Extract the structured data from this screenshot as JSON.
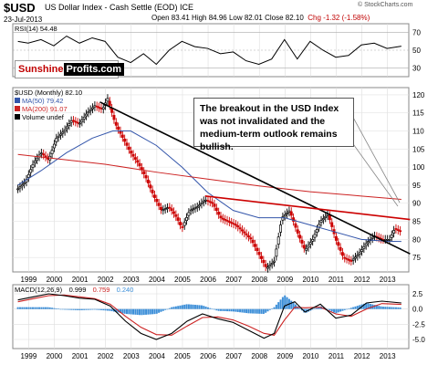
{
  "header": {
    "symbol": "$USD",
    "name": "US Dollar Index - Cash Settle (EOD) ICE",
    "date": "23-Jul-2013",
    "quote_main": "Open 83.41  High 84.96  Low 82.01  Close 82.10",
    "quote_chg": "Chg -1.32 (-1.58%)",
    "copyright": "© StockCharts.com"
  },
  "logo": {
    "part1": "Sunshine",
    "part2": "Profits.com"
  },
  "annotation": "The breakout in the USD Index was not invalidated and the medium-term outlook remains bullish.",
  "colors": {
    "bull": "#000000",
    "bear": "#cc0000",
    "ma50": "#3355aa",
    "ma200": "#cc2222",
    "trend_red": "#cc0000",
    "trend_black": "#000000",
    "macd_hist": "#3d8fd8",
    "macd_line": "#000000",
    "signal_line": "#cc2222",
    "rsi_line": "#000000"
  },
  "chart_data": [
    {
      "type": "line",
      "title": "RSI(14) 54.48",
      "legend": "RSI(14) 54.48",
      "yticks": [
        70,
        50,
        30
      ],
      "ylim": [
        20,
        80
      ],
      "x": [
        1998.6,
        1999.0,
        1999.5,
        2000.0,
        2000.5,
        2001.0,
        2001.5,
        2002.0,
        2002.5,
        2003.0,
        2003.5,
        2004.0,
        2004.5,
        2005.0,
        2005.5,
        2006.0,
        2006.5,
        2007.0,
        2007.5,
        2008.0,
        2008.5,
        2009.0,
        2009.5,
        2010.0,
        2010.5,
        2011.0,
        2011.5,
        2012.0,
        2012.5,
        2013.0,
        2013.56
      ],
      "values": [
        60,
        58,
        62,
        55,
        66,
        58,
        64,
        60,
        42,
        36,
        46,
        34,
        50,
        60,
        54,
        52,
        46,
        48,
        38,
        34,
        40,
        62,
        40,
        60,
        50,
        42,
        44,
        56,
        58,
        52,
        54.48
      ]
    },
    {
      "type": "line",
      "title": "$USD (Monthly) 82.10",
      "legend": [
        "$USD (Monthly) 82.10",
        "MA(50) 79.42",
        "MA(200) 91.07",
        "Volume undef"
      ],
      "xticks": [
        "1999",
        "2000",
        "2001",
        "2002",
        "2003",
        "2004",
        "2005",
        "2006",
        "2007",
        "2008",
        "2009",
        "2010",
        "2011",
        "2012",
        "2013"
      ],
      "yticks": [
        120,
        115,
        110,
        105,
        100,
        95,
        90,
        85,
        80,
        75
      ],
      "ylim": [
        71,
        122
      ],
      "series": [
        {
          "name": "$USD (Monthly) 82.10",
          "x": [
            1998.6,
            1998.9,
            1999.2,
            1999.5,
            1999.8,
            2000.1,
            2000.4,
            2000.7,
            2001.0,
            2001.3,
            2001.6,
            2001.9,
            2002.1,
            2002.4,
            2002.7,
            2003.0,
            2003.3,
            2003.6,
            2003.9,
            2004.2,
            2004.5,
            2004.8,
            2005.0,
            2005.3,
            2005.6,
            2005.9,
            2006.2,
            2006.5,
            2006.8,
            2007.1,
            2007.4,
            2007.7,
            2008.0,
            2008.3,
            2008.6,
            2008.9,
            2009.2,
            2009.5,
            2009.8,
            2010.1,
            2010.4,
            2010.7,
            2011.0,
            2011.3,
            2011.6,
            2011.9,
            2012.2,
            2012.5,
            2012.8,
            2013.1,
            2013.3,
            2013.56
          ],
          "values": [
            94,
            96,
            101,
            104,
            102,
            108,
            110,
            113,
            112,
            115,
            117,
            116,
            119,
            112,
            108,
            104,
            101,
            97,
            92,
            88,
            89,
            86,
            83,
            88,
            89,
            91,
            90,
            86,
            85,
            84,
            82,
            80,
            76,
            72,
            74,
            86,
            88,
            82,
            77,
            80,
            85,
            87,
            80,
            75,
            74,
            76,
            79,
            81,
            80,
            80,
            83,
            82.1
          ]
        },
        {
          "name": "MA(50) 79.42",
          "x": [
            1998.6,
            1999.5,
            2000.5,
            2001.5,
            2002.3,
            2003.0,
            2004.0,
            2005.0,
            2006.0,
            2007.0,
            2008.0,
            2009.0,
            2010.0,
            2011.0,
            2012.0,
            2013.0,
            2013.56
          ],
          "values": [
            95,
            99,
            104,
            108,
            110,
            110,
            106,
            100,
            93,
            88,
            86,
            86,
            84,
            82,
            80,
            79.5,
            79.42
          ]
        },
        {
          "name": "MA(200) 91.07",
          "x": [
            1998.6,
            2000.0,
            2002.0,
            2004.0,
            2006.0,
            2008.0,
            2010.0,
            2012.0,
            2013.56
          ],
          "values": [
            103.5,
            102.4,
            100.8,
            98.6,
            96.7,
            94.8,
            93.2,
            92.0,
            91.07
          ]
        }
      ],
      "trendlines": [
        {
          "name": "black",
          "x": [
            2001.8,
            2013.9
          ],
          "values": [
            118,
            76
          ]
        },
        {
          "name": "red",
          "x": [
            2005.9,
            2013.9
          ],
          "values": [
            92,
            85.5
          ]
        }
      ]
    },
    {
      "type": "line",
      "title": "MACD(12,26,9) 0.999, 0.759, 0.240",
      "legend": [
        "MACD(12,26,9)",
        "0.999",
        "0.759",
        "0.240"
      ],
      "xticks": [
        "1999",
        "2000",
        "2001",
        "2002",
        "2003",
        "2004",
        "2005",
        "2006",
        "2007",
        "2008",
        "2009",
        "2010",
        "2011",
        "2012",
        "2013"
      ],
      "yticks": [
        "2.5",
        "0.0",
        "-2.5",
        "-5.0"
      ],
      "ylim": [
        -6.5,
        4
      ],
      "x": [
        1998.6,
        1999.2,
        1999.8,
        2000.4,
        2001.0,
        2001.6,
        2002.2,
        2002.8,
        2003.4,
        2004.0,
        2004.6,
        2005.2,
        2005.8,
        2006.4,
        2007.0,
        2007.6,
        2008.2,
        2008.6,
        2009.0,
        2009.4,
        2009.8,
        2010.4,
        2011.0,
        2011.6,
        2012.2,
        2012.8,
        2013.56
      ],
      "series": [
        {
          "name": "MACD",
          "values": [
            1.5,
            2.0,
            2.5,
            2.2,
            1.8,
            1.6,
            0.5,
            -2.0,
            -4.0,
            -5.0,
            -4.0,
            -2.0,
            -0.8,
            -1.6,
            -2.2,
            -3.5,
            -4.8,
            -4.0,
            0.5,
            1.2,
            -0.5,
            0.8,
            -1.5,
            -1.0,
            1.0,
            1.3,
            0.999
          ]
        },
        {
          "name": "Signal",
          "values": [
            1.2,
            1.7,
            2.2,
            2.3,
            2.0,
            1.7,
            0.8,
            -1.2,
            -3.0,
            -4.2,
            -4.3,
            -2.8,
            -1.4,
            -1.3,
            -1.8,
            -2.8,
            -4.0,
            -4.3,
            -1.8,
            0.3,
            0.2,
            0.3,
            -0.8,
            -1.2,
            0.0,
            0.9,
            0.759
          ]
        },
        {
          "name": "Histogram",
          "values": [
            0.3,
            0.3,
            0.3,
            -0.1,
            -0.2,
            -0.1,
            -0.3,
            -0.8,
            -1.0,
            -0.8,
            0.3,
            0.8,
            0.6,
            -0.3,
            -0.4,
            -0.7,
            -0.8,
            0.3,
            2.3,
            0.9,
            -0.7,
            0.5,
            -0.7,
            0.2,
            1.0,
            0.4,
            0.24
          ]
        }
      ]
    }
  ]
}
